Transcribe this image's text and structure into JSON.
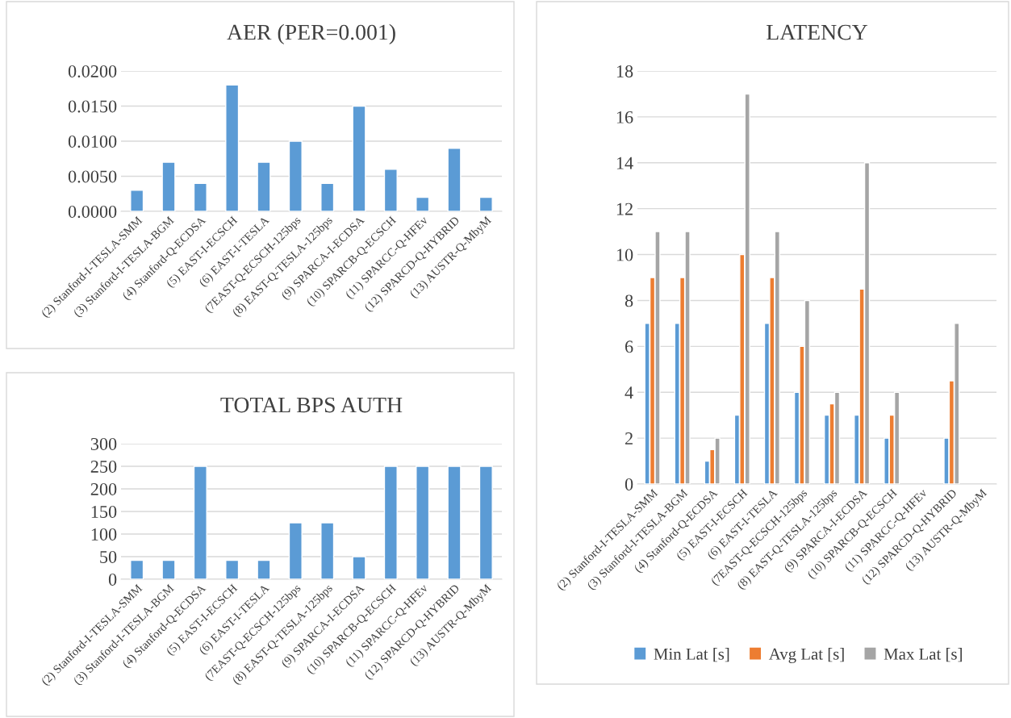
{
  "chart_data": [
    {
      "type": "bar",
      "title": "AER (PER=0.001)",
      "categories": [
        "(2) Stanford-I-TESLA-SMM",
        "(3) Stanford-I-TESLA-BGM",
        "(4) Stanford-Q-ECDSA",
        "(5) EAST-I-ECSCH",
        "(6) EAST-I-TESLA",
        "(7EAST-Q-ECSCH-125bps",
        "(8) EAST-Q-TESLA-125bps",
        "(9) SPARCA-I-ECDSA",
        "(10) SPARCB-Q-ECSCH",
        "(11) SPARCC-Q-HFEv",
        "(12) SPARCD-Q-HYBRID",
        "(13) AUSTR-Q-MbyM"
      ],
      "series": [
        {
          "color": "#5b9bd5",
          "values": [
            0.003,
            0.007,
            0.004,
            0.018,
            0.007,
            0.01,
            0.004,
            0.015,
            0.006,
            0.002,
            0.009,
            0.002
          ]
        }
      ],
      "ylim": [
        0,
        0.02
      ],
      "yticks": [
        {
          "value": 0,
          "label": "0.0000"
        },
        {
          "value": 0.005,
          "label": "0.0050"
        },
        {
          "value": 0.01,
          "label": "0.0100"
        },
        {
          "value": 0.015,
          "label": "0.0150"
        },
        {
          "value": 0.02,
          "label": "0.0200"
        }
      ],
      "grid": "y",
      "legend": false
    },
    {
      "type": "bar",
      "title": "TOTAL BPS AUTH",
      "categories": [
        "(2) Stanford-I-TESLA-SMM",
        "(3) Stanford-I-TESLA-BGM",
        "(4) Stanford-Q-ECDSA",
        "(5) EAST-I-ECSCH",
        "(6) EAST-I-TESLA",
        "(7EAST-Q-ECSCH-125bps",
        "(8) EAST-Q-TESLA-125bps",
        "(9) SPARCA-I-ECDSA",
        "(10) SPARCB-Q-ECSCH",
        "(11) SPARCC-Q-HFEv",
        "(12) SPARCD-Q-HYBRID",
        "(13) AUSTR-Q-MbyM"
      ],
      "series": [
        {
          "color": "#5b9bd5",
          "values": [
            42,
            42,
            250,
            42,
            42,
            125,
            125,
            50,
            250,
            250,
            250,
            250
          ]
        }
      ],
      "ylim": [
        0,
        300
      ],
      "yticks": [
        0,
        50,
        100,
        150,
        200,
        250,
        300
      ],
      "grid": "y",
      "legend": false
    },
    {
      "type": "bar",
      "title": "LATENCY",
      "categories": [
        "(2) Stanford-I-TESLA-SMM",
        "(3) Stanford-I-TESLA-BGM",
        "(4) Stanford-Q-ECDSA",
        "(5) EAST-I-ECSCH",
        "(6) EAST-I-TESLA",
        "(7EAST-Q-ECSCH-125bps",
        "(8) EAST-Q-TESLA-125bps",
        "(9) SPARCA-I-ECDSA",
        "(10) SPARCB-Q-ECSCH",
        "(11) SPARCC-Q-HFEv",
        "(12) SPARCD-Q-HYBRID",
        "(13) AUSTR-Q-MbyM"
      ],
      "series": [
        {
          "name": "Min Lat [s]",
          "color": "#5b9bd5",
          "values": [
            7,
            7,
            1,
            3,
            7,
            4,
            3,
            3,
            2,
            null,
            2,
            null
          ]
        },
        {
          "name": "Avg Lat [s]",
          "color": "#ed7d31",
          "values": [
            9,
            9,
            1.5,
            10,
            9,
            6,
            3.5,
            8.5,
            3,
            null,
            4.5,
            null
          ]
        },
        {
          "name": "Max Lat [s]",
          "color": "#a5a5a5",
          "values": [
            11,
            11,
            2,
            17,
            11,
            8,
            4,
            14,
            4,
            null,
            7,
            null
          ]
        }
      ],
      "ylim": [
        0,
        18
      ],
      "yticks": [
        0,
        2,
        4,
        6,
        8,
        10,
        12,
        14,
        16,
        18
      ],
      "grid": "y",
      "legend": "bottom"
    }
  ]
}
